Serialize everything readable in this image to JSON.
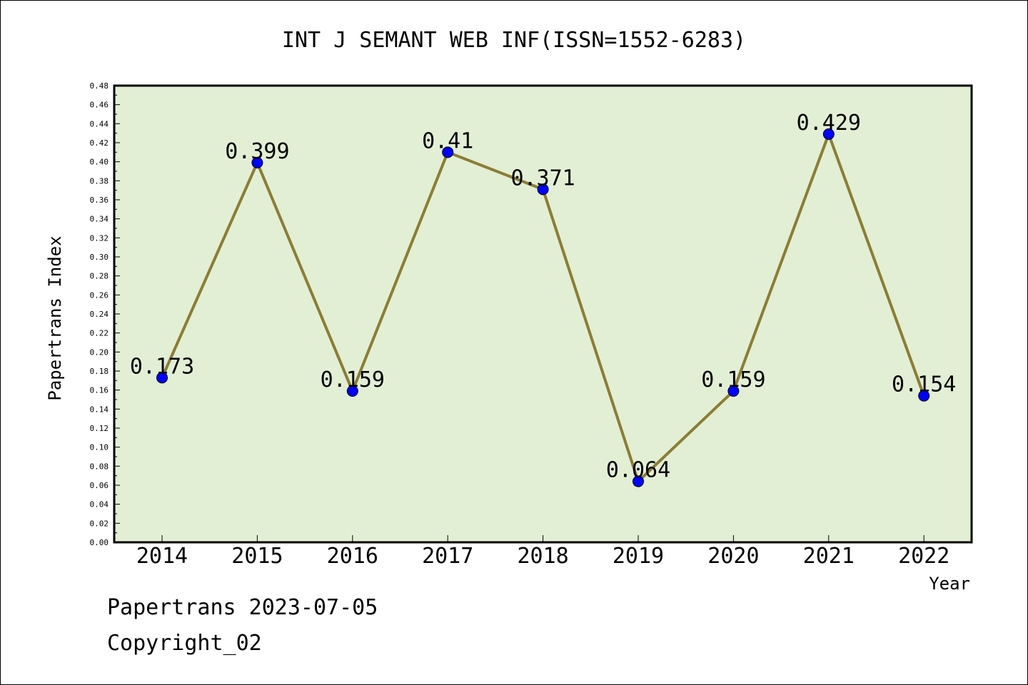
{
  "chart_data": {
    "type": "line",
    "title": "INT J SEMANT WEB INF(ISSN=1552-6283)",
    "xlabel": "Year",
    "ylabel": "Papertrans Index",
    "categories": [
      "2014",
      "2015",
      "2016",
      "2017",
      "2018",
      "2019",
      "2020",
      "2021",
      "2022"
    ],
    "values": [
      0.173,
      0.399,
      0.159,
      0.41,
      0.371,
      0.064,
      0.159,
      0.429,
      0.154
    ],
    "data_labels": [
      "0.173",
      "0.399",
      "0.159",
      "0.41",
      "0.371",
      "0.064",
      "0.159",
      "0.429",
      "0.154"
    ],
    "ylim": [
      0,
      0.48
    ],
    "y_ticks": [
      "0.00",
      "0.02",
      "0.04",
      "0.06",
      "0.08",
      "0.10",
      "0.12",
      "0.14",
      "0.16",
      "0.18",
      "0.20",
      "0.22",
      "0.24",
      "0.26",
      "0.28",
      "0.30",
      "0.32",
      "0.34",
      "0.36",
      "0.38",
      "0.40",
      "0.42",
      "0.44",
      "0.46",
      "0.48"
    ],
    "grid": false,
    "legend": "none",
    "colors": {
      "plot_background": "#e2efd5",
      "line": "#8b7d34",
      "marker": "#0000ff"
    }
  },
  "footer": {
    "line1": "Papertrans 2023-07-05",
    "line2": "Copyright_02"
  }
}
